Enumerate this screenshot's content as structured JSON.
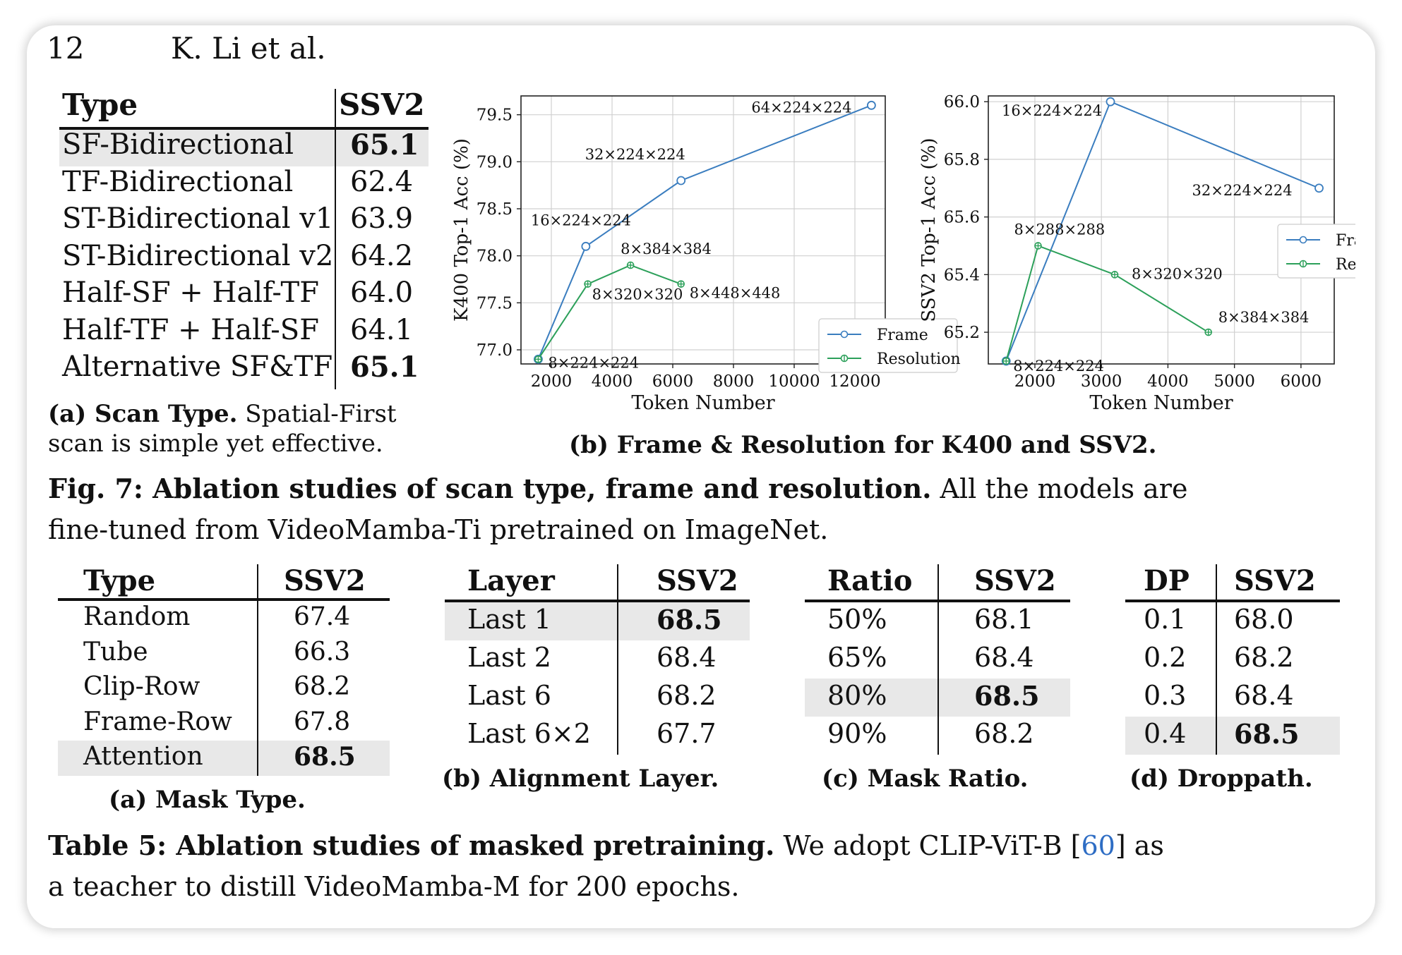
{
  "header": {
    "page_number": "12",
    "authors": "K. Li et al."
  },
  "scan_table": {
    "columns": [
      "Type",
      "SSV2"
    ],
    "rows": [
      {
        "type": "SF-Bidirectional",
        "value": "65.1"
      },
      {
        "type": "TF-Bidirectional",
        "value": "62.4"
      },
      {
        "type": "ST-Bidirectional v1",
        "value": "63.9"
      },
      {
        "type": "ST-Bidirectional v2",
        "value": "64.2"
      },
      {
        "type": "Half-SF + Half-TF",
        "value": "64.0"
      },
      {
        "type": "Half-TF + Half-SF",
        "value": "64.1"
      },
      {
        "type": "Alternative SF&TF",
        "value": "65.1"
      }
    ],
    "caption_label": "(a) Scan Type.",
    "caption_text_1": "Spatial-First",
    "caption_text_2": "scan is simple yet effective."
  },
  "chart_data": [
    {
      "type": "line",
      "xlabel": "Token Number",
      "ylabel": "K400 Top-1 Acc (%)",
      "xlim": [
        1000,
        13000
      ],
      "ylim": [
        76.85,
        79.7
      ],
      "xticks": [
        "2000",
        "4000",
        "6000",
        "8000",
        "10000",
        "12000"
      ],
      "yticks": [
        "77.0",
        "77.5",
        "78.0",
        "78.5",
        "79.0",
        "79.5"
      ],
      "grid": true,
      "legend_position": "bottom-right",
      "series": [
        {
          "name": "Frame",
          "color": "#3a7dbf",
          "marker": "circle",
          "x": [
            1568,
            3136,
            6272,
            12544
          ],
          "y": [
            76.9,
            78.1,
            78.8,
            79.6
          ],
          "labels": [
            "8×224×224",
            "16×224×224",
            "32×224×224",
            "64×224×224"
          ]
        },
        {
          "name": "Resolution",
          "color": "#2ca05a",
          "marker": "plus",
          "x": [
            1568,
            3200,
            4608,
            6272
          ],
          "y": [
            76.9,
            77.7,
            77.9,
            77.7
          ],
          "labels": [
            "",
            "8×320×320",
            "8×384×384",
            "8×448×448"
          ]
        }
      ]
    },
    {
      "type": "line",
      "xlabel": "Token Number",
      "ylabel": "SSV2 Top-1 Acc (%)",
      "xlim": [
        1300,
        6500
      ],
      "ylim": [
        65.09,
        66.02
      ],
      "xticks": [
        "2000",
        "3000",
        "4000",
        "5000",
        "6000"
      ],
      "yticks": [
        "65.2",
        "65.4",
        "65.6",
        "65.8",
        "66.0"
      ],
      "grid": true,
      "legend_position": "center-right",
      "series": [
        {
          "name": "Frame",
          "color": "#3a7dbf",
          "marker": "circle",
          "x": [
            1568,
            3136,
            6272
          ],
          "y": [
            65.1,
            66.0,
            65.7
          ],
          "labels": [
            "8×224×224",
            "16×224×224",
            "32×224×224"
          ]
        },
        {
          "name": "Resolution",
          "color": "#2ca05a",
          "marker": "plus",
          "x": [
            1568,
            2048,
            3200,
            4608
          ],
          "y": [
            65.1,
            65.5,
            65.4,
            65.2
          ],
          "labels": [
            "",
            "8×288×288",
            "8×320×320",
            "8×384×384"
          ]
        }
      ]
    }
  ],
  "chart_caption": "(b) Frame & Resolution for K400 and SSV2.",
  "fig_caption": {
    "label": "Fig. 7: Ablation studies of scan type, frame and resolution.",
    "text_1": "All the models are",
    "text_2": "fine-tuned from VideoMamba-Ti pretrained on ImageNet."
  },
  "mask_type_table": {
    "columns": [
      "Type",
      "SSV2"
    ],
    "rows": [
      {
        "label": "Random",
        "value": "67.4"
      },
      {
        "label": "Tube",
        "value": "66.3"
      },
      {
        "label": "Clip-Row",
        "value": "68.2"
      },
      {
        "label": "Frame-Row",
        "value": "67.8"
      },
      {
        "label": "Attention",
        "value": "68.5"
      }
    ],
    "caption": "(a) Mask Type."
  },
  "layer_table": {
    "columns": [
      "Layer",
      "SSV2"
    ],
    "rows": [
      {
        "label": "Last 1",
        "value": "68.5"
      },
      {
        "label": "Last 2",
        "value": "68.4"
      },
      {
        "label": "Last 6",
        "value": "68.2"
      },
      {
        "label": "Last 6×2",
        "value": "67.7"
      }
    ],
    "caption": "(b) Alignment Layer."
  },
  "ratio_table": {
    "columns": [
      "Ratio",
      "SSV2"
    ],
    "rows": [
      {
        "label": "50%",
        "value": "68.1"
      },
      {
        "label": "65%",
        "value": "68.4"
      },
      {
        "label": "80%",
        "value": "68.5"
      },
      {
        "label": "90%",
        "value": "68.2"
      }
    ],
    "caption": "(c) Mask Ratio."
  },
  "dp_table": {
    "columns": [
      "DP",
      "SSV2"
    ],
    "rows": [
      {
        "label": "0.1",
        "value": "68.0"
      },
      {
        "label": "0.2",
        "value": "68.2"
      },
      {
        "label": "0.3",
        "value": "68.4"
      },
      {
        "label": "0.4",
        "value": "68.5"
      }
    ],
    "caption": "(d) Droppath."
  },
  "table_caption": {
    "label": "Table 5: Ablation studies of masked pretraining.",
    "text_1": "We adopt CLIP-ViT-B [",
    "ref": "60",
    "text_2": "] as",
    "text_3": "a teacher to distill VideoMamba-M for 200 epochs."
  }
}
